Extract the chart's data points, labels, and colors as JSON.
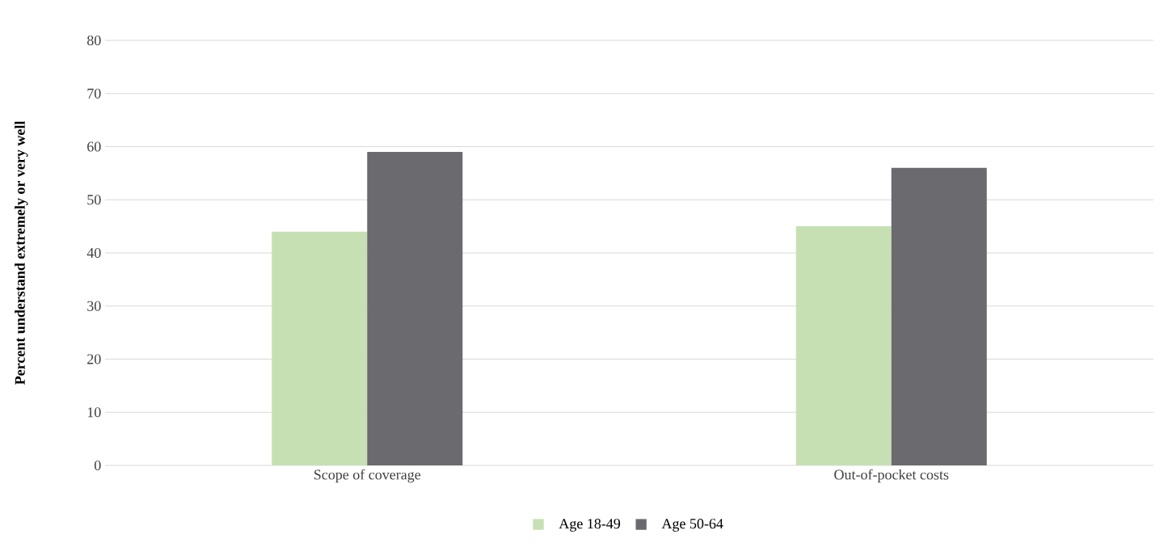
{
  "chart_data": {
    "type": "bar",
    "ylabel": "Percent understand extremely or very well",
    "categories": [
      "Scope of coverage",
      "Out-of-pocket costs"
    ],
    "series": [
      {
        "name": "Age 18-49",
        "color": "#c6e0b4",
        "values": [
          44,
          45
        ]
      },
      {
        "name": "Age 50-64",
        "color": "#6b6a6e",
        "values": [
          59,
          56
        ]
      }
    ],
    "ylim": [
      0,
      80
    ],
    "yticks": [
      0,
      10,
      20,
      30,
      40,
      50,
      60,
      70,
      80
    ],
    "grid": "y",
    "legend": "bottom"
  }
}
